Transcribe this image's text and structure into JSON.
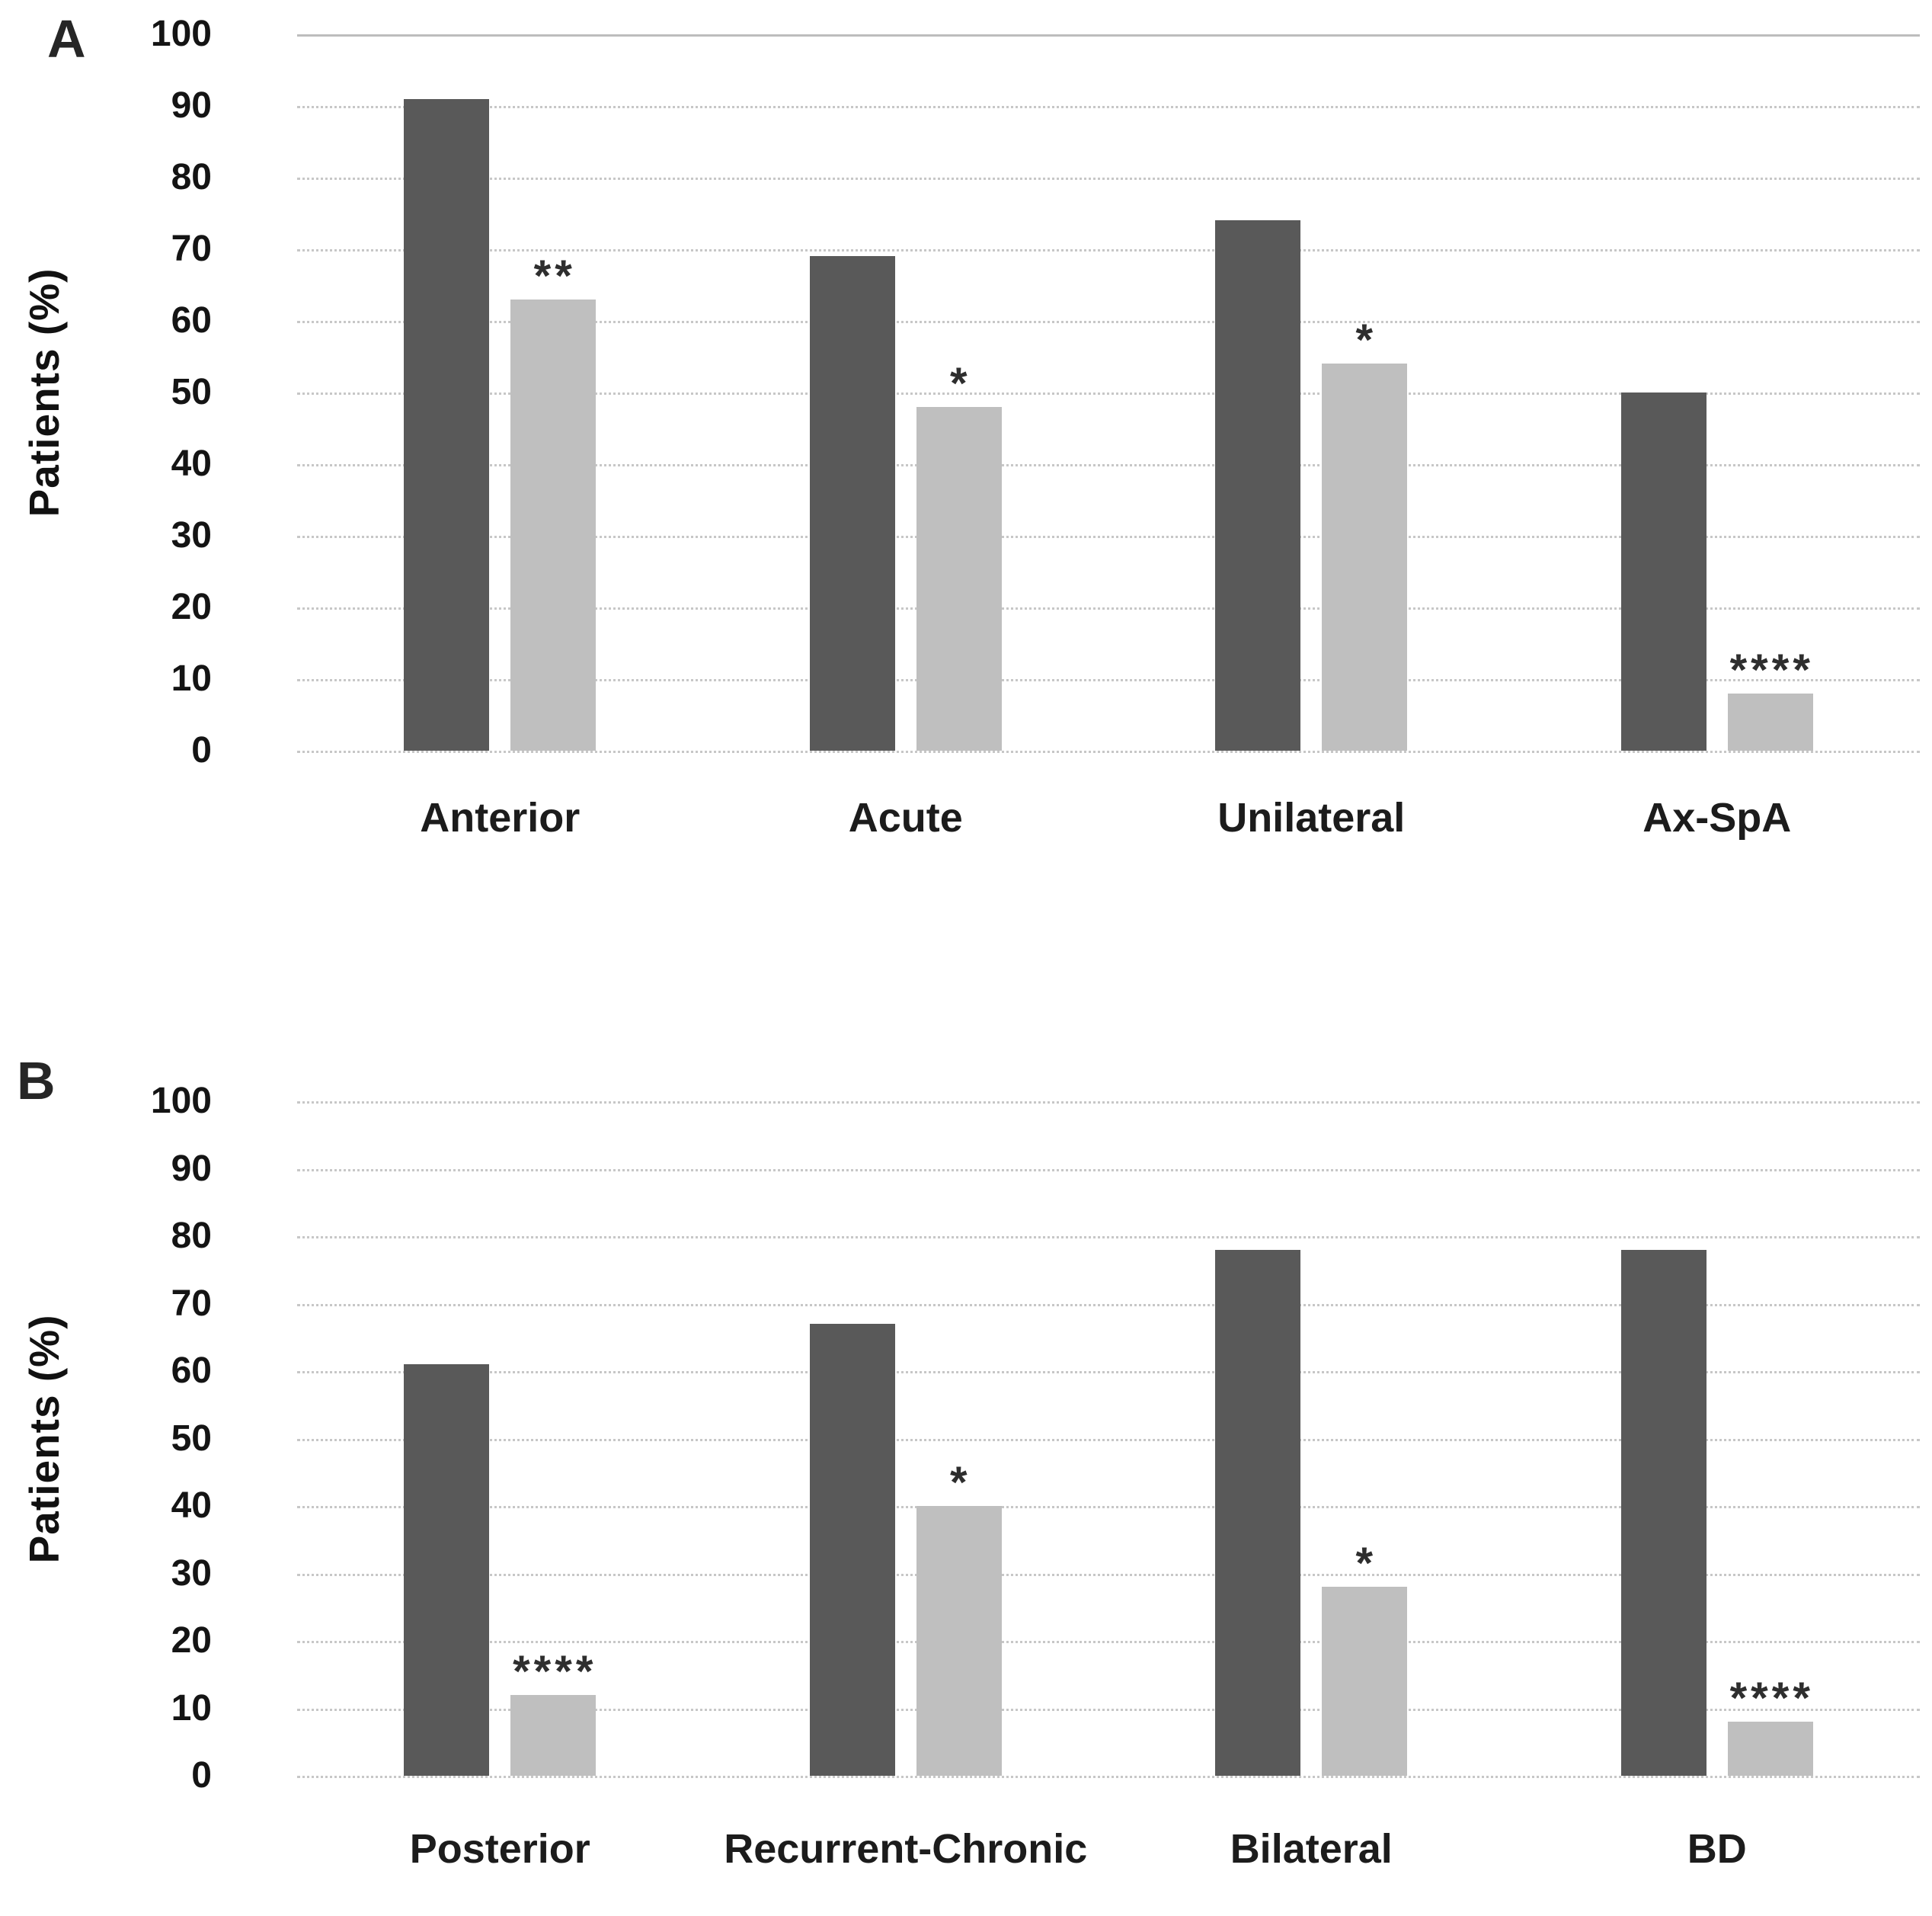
{
  "figure_title": "",
  "colors": {
    "dark_bar": "#595959",
    "light_bar": "#bfbfbf",
    "gridline": "#c7c7c7",
    "text": "#1a1a1a"
  },
  "chart_data": [
    {
      "type": "bar",
      "panel_label": "A",
      "ylabel": "Patients (%)",
      "ylim": [
        0,
        100
      ],
      "ytick_step": 10,
      "yticks": [
        100,
        90,
        80,
        70,
        60,
        50,
        40,
        30,
        20,
        10,
        0
      ],
      "grid": "horizontal-dotted",
      "legend": "none",
      "categories": [
        "Anterior",
        "Acute",
        "Unilateral",
        "Ax-SpA"
      ],
      "series": [
        {
          "name": "dark-gray",
          "color": "#595959",
          "values": [
            91,
            69,
            74,
            50
          ]
        },
        {
          "name": "light-gray",
          "color": "#bfbfbf",
          "values": [
            63,
            48,
            54,
            8
          ]
        }
      ],
      "significance_above_light_bars": [
        "**",
        "*",
        "*",
        "****"
      ]
    },
    {
      "type": "bar",
      "panel_label": "B",
      "ylabel": "Patients (%)",
      "ylim": [
        0,
        100
      ],
      "ytick_step": 10,
      "yticks": [
        100,
        90,
        80,
        70,
        60,
        50,
        40,
        30,
        20,
        10,
        0
      ],
      "grid": "horizontal-dotted",
      "legend": "none",
      "categories": [
        "Posterior",
        "Recurrent-Chronic",
        "Bilateral",
        "BD"
      ],
      "series": [
        {
          "name": "dark-gray",
          "color": "#595959",
          "values": [
            61,
            67,
            78,
            78
          ]
        },
        {
          "name": "light-gray",
          "color": "#bfbfbf",
          "values": [
            12,
            40,
            28,
            8
          ]
        }
      ],
      "significance_above_light_bars": [
        "****",
        "*",
        "*",
        "****"
      ]
    }
  ]
}
